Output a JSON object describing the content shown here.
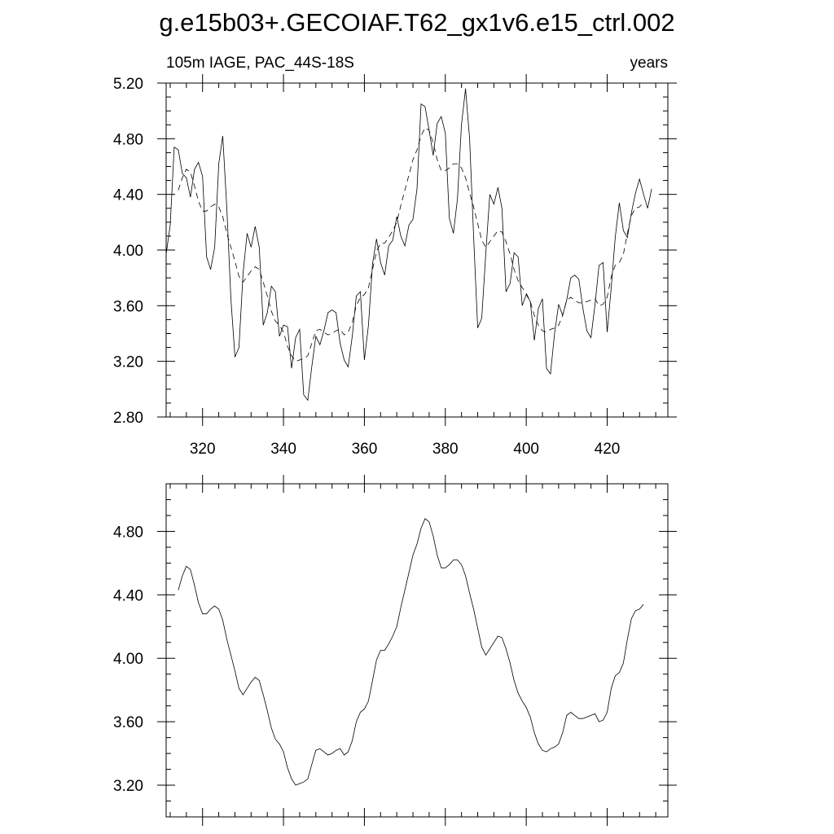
{
  "figure": {
    "title": "g.e15b03+.GECOIAF.T62_gx1v6.e15_ctrl.002"
  },
  "chart_data": [
    {
      "type": "line",
      "subtitle_left": "105m IAGE, PAC_44S-18S",
      "subtitle_right": "years",
      "xlim": [
        311,
        435
      ],
      "ylim": [
        2.8,
        5.2
      ],
      "x_ticks": [
        320,
        340,
        360,
        380,
        400,
        420
      ],
      "x_tick_labels": [
        "320",
        "340",
        "360",
        "380",
        "400",
        "420"
      ],
      "y_ticks": [
        2.8,
        3.2,
        3.6,
        4.0,
        4.4,
        4.8,
        5.2
      ],
      "y_tick_labels": [
        "2.80",
        "3.20",
        "3.60",
        "4.00",
        "4.40",
        "4.80",
        "5.20"
      ],
      "series": [
        {
          "style": "solid-thin",
          "x_start": 311,
          "values": [
            3.97,
            4.18,
            4.74,
            4.72,
            4.55,
            4.52,
            4.38,
            4.58,
            4.63,
            4.53,
            3.95,
            3.86,
            4.02,
            4.62,
            4.82,
            4.3,
            3.65,
            3.23,
            3.3,
            3.83,
            4.12,
            4.02,
            4.17,
            4.02,
            3.46,
            3.55,
            3.74,
            3.7,
            3.38,
            3.46,
            3.45,
            3.15,
            3.37,
            3.43,
            2.96,
            2.92,
            3.16,
            3.38,
            3.32,
            3.42,
            3.55,
            3.57,
            3.55,
            3.33,
            3.21,
            3.16,
            3.38,
            3.67,
            3.7,
            3.21,
            3.46,
            3.9,
            4.08,
            3.91,
            3.82,
            4.03,
            4.07,
            4.24,
            4.1,
            4.03,
            4.18,
            4.22,
            4.44,
            5.05,
            5.03,
            4.86,
            4.68,
            4.91,
            4.96,
            4.84,
            4.23,
            4.12,
            4.37,
            4.9,
            5.16,
            4.8,
            4.1,
            3.44,
            3.51,
            3.98,
            4.4,
            4.33,
            4.45,
            4.3,
            3.7,
            3.76,
            3.98,
            3.95,
            3.6,
            3.68,
            3.63,
            3.35,
            3.58,
            3.65,
            3.15,
            3.11,
            3.4,
            3.61,
            3.53,
            3.64,
            3.8,
            3.82,
            3.79,
            3.58,
            3.42,
            3.37,
            3.61,
            3.89,
            3.91,
            3.41,
            3.73,
            4.09,
            4.34,
            4.14,
            4.09,
            4.27,
            4.41,
            4.51,
            4.4,
            4.3,
            4.44
          ]
        },
        {
          "style": "dashed",
          "x_start": 314,
          "values": [
            4.43,
            4.52,
            4.58,
            4.56,
            4.46,
            4.35,
            4.28,
            4.28,
            4.31,
            4.33,
            4.31,
            4.24,
            4.12,
            4.02,
            3.92,
            3.81,
            3.77,
            3.81,
            3.85,
            3.88,
            3.86,
            3.77,
            3.67,
            3.56,
            3.49,
            3.46,
            3.41,
            3.31,
            3.24,
            3.2,
            3.21,
            3.22,
            3.24,
            3.33,
            3.42,
            3.43,
            3.41,
            3.39,
            3.4,
            3.42,
            3.43,
            3.39,
            3.41,
            3.48,
            3.6,
            3.66,
            3.68,
            3.73,
            3.86,
            3.99,
            4.05,
            4.05,
            4.09,
            4.14,
            4.2,
            4.32,
            4.43,
            4.54,
            4.65,
            4.72,
            4.82,
            4.88,
            4.86,
            4.77,
            4.65,
            4.57,
            4.57,
            4.59,
            4.62,
            4.62,
            4.59,
            4.52,
            4.41,
            4.31,
            4.19,
            4.07,
            4.02,
            4.06,
            4.1,
            4.14,
            4.13,
            4.06,
            3.97,
            3.86,
            3.78,
            3.73,
            3.69,
            3.63,
            3.53,
            3.46,
            3.42,
            3.41,
            3.43,
            3.44,
            3.46,
            3.53,
            3.64,
            3.66,
            3.64,
            3.62,
            3.62,
            3.63,
            3.64,
            3.65,
            3.6,
            3.61,
            3.66,
            3.81,
            3.89,
            3.91,
            3.97,
            4.12,
            4.25,
            4.3,
            4.31,
            4.34
          ]
        }
      ]
    },
    {
      "type": "line",
      "xlim": [
        311,
        435
      ],
      "ylim": [
        3.0,
        5.1
      ],
      "x_ticks": [
        320,
        340,
        360,
        380,
        400,
        420
      ],
      "y_ticks": [
        3.2,
        3.6,
        4.0,
        4.4,
        4.8
      ],
      "y_tick_labels": [
        "3.20",
        "3.60",
        "4.00",
        "4.40",
        "4.80"
      ],
      "series": [
        {
          "style": "solid",
          "x_start": 314,
          "values": [
            4.43,
            4.52,
            4.58,
            4.56,
            4.46,
            4.35,
            4.28,
            4.28,
            4.31,
            4.33,
            4.31,
            4.24,
            4.12,
            4.02,
            3.92,
            3.81,
            3.77,
            3.81,
            3.85,
            3.88,
            3.86,
            3.77,
            3.67,
            3.56,
            3.49,
            3.46,
            3.41,
            3.31,
            3.24,
            3.2,
            3.21,
            3.22,
            3.24,
            3.33,
            3.42,
            3.43,
            3.41,
            3.39,
            3.4,
            3.42,
            3.43,
            3.39,
            3.41,
            3.48,
            3.6,
            3.66,
            3.68,
            3.73,
            3.86,
            3.99,
            4.05,
            4.05,
            4.09,
            4.14,
            4.2,
            4.32,
            4.43,
            4.54,
            4.65,
            4.72,
            4.82,
            4.88,
            4.86,
            4.77,
            4.65,
            4.57,
            4.57,
            4.59,
            4.62,
            4.62,
            4.59,
            4.52,
            4.41,
            4.31,
            4.19,
            4.07,
            4.02,
            4.06,
            4.1,
            4.14,
            4.13,
            4.06,
            3.97,
            3.86,
            3.78,
            3.73,
            3.69,
            3.63,
            3.53,
            3.46,
            3.42,
            3.41,
            3.43,
            3.44,
            3.46,
            3.53,
            3.64,
            3.66,
            3.64,
            3.62,
            3.62,
            3.63,
            3.64,
            3.65,
            3.6,
            3.61,
            3.66,
            3.81,
            3.89,
            3.91,
            3.97,
            4.12,
            4.25,
            4.3,
            4.31,
            4.34
          ]
        }
      ]
    }
  ]
}
